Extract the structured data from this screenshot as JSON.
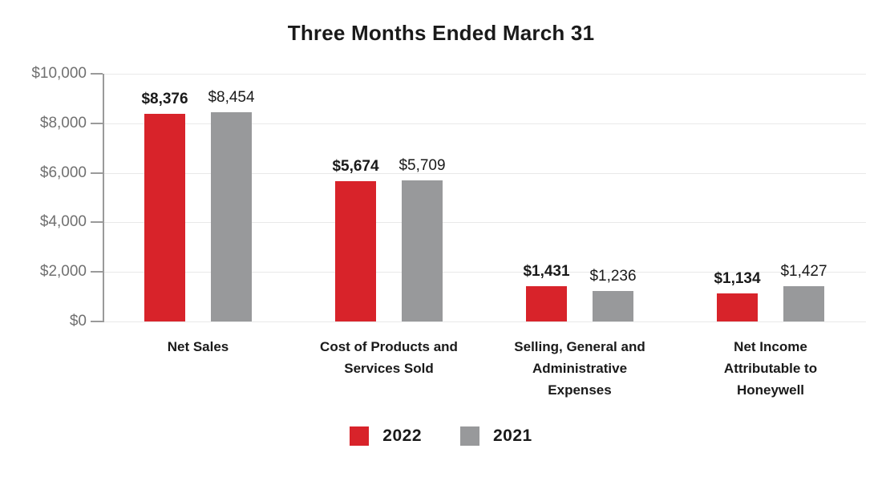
{
  "title": "Three Months Ended March 31",
  "chart_data": {
    "type": "bar",
    "title": "Three Months Ended March 31",
    "xlabel": "",
    "ylabel": "",
    "categories": [
      "Net Sales",
      "Cost of Products and Services Sold",
      "Selling, General and Administrative Expenses",
      "Net Income Attributable to Honeywell"
    ],
    "category_lines": [
      [
        "Net Sales"
      ],
      [
        "Cost of Products and",
        "Services Sold"
      ],
      [
        "Selling, General and",
        "Administrative",
        "Expenses"
      ],
      [
        "Net Income",
        "Attributable to",
        "Honeywell"
      ]
    ],
    "series": [
      {
        "name": "2022",
        "color": "#d8232a",
        "values": [
          8376,
          5674,
          1431,
          1134
        ],
        "value_labels": [
          "$8,376",
          "$5,674",
          "$1,431",
          "$1,134"
        ],
        "labels_bold": true
      },
      {
        "name": "2021",
        "color": "#98999b",
        "values": [
          8454,
          5709,
          1236,
          1427
        ],
        "value_labels": [
          "$8,454",
          "$5,709",
          "$1,236",
          "$1,427"
        ],
        "labels_bold": false
      }
    ],
    "y_axis": {
      "min": 0,
      "max": 10000,
      "tick_interval": 2000,
      "tick_labels": [
        "$0",
        "$2,000",
        "$4,000",
        "$6,000",
        "$8,000",
        "$10,000"
      ]
    },
    "grid": true,
    "legend_position": "bottom"
  },
  "colors": {
    "series_2022": "#d8232a",
    "series_2021": "#98999b",
    "axis_line": "#9a9a9a",
    "gridline": "#e9e9e9",
    "y_label_text": "#707070",
    "text": "#1a1a1a",
    "background": "#ffffff"
  }
}
